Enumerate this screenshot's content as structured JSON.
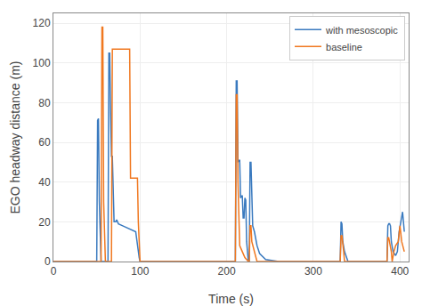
{
  "chart_data": {
    "type": "line",
    "title": "",
    "xlabel": "Time (s)",
    "ylabel": "EGO headway distance (m)",
    "xlim": [
      0,
      410
    ],
    "ylim": [
      0,
      125
    ],
    "xticks": [
      0,
      100,
      200,
      300,
      400
    ],
    "yticks": [
      0,
      20,
      40,
      60,
      80,
      100,
      120
    ],
    "grid": true,
    "legend": "upper right",
    "series": [
      {
        "name": "with mesoscopic",
        "color": "#3a7abf",
        "x": [
          0,
          49,
          50,
          51,
          52,
          53,
          55,
          56,
          62,
          63,
          64,
          65,
          66,
          67,
          68,
          69,
          70,
          71,
          72,
          73,
          74,
          75,
          80,
          85,
          90,
          95,
          99,
          100,
          101,
          199,
          210,
          211,
          212,
          213,
          214,
          215,
          216,
          217,
          218,
          219,
          220,
          221,
          222,
          223,
          224,
          225,
          226,
          227,
          228,
          229,
          230,
          232,
          235,
          238,
          245,
          260,
          265,
          266,
          329,
          330,
          331,
          332,
          333,
          334,
          336,
          340,
          341,
          384,
          385,
          386,
          387,
          388,
          389,
          390,
          392,
          395,
          397,
          399,
          401,
          403,
          405
        ],
        "values": [
          0,
          0,
          0,
          71,
          72,
          30,
          0,
          0,
          0,
          0,
          105,
          105,
          75,
          53,
          53,
          30,
          20,
          20,
          20,
          21,
          20,
          19,
          18,
          17,
          16,
          15,
          2,
          0,
          0,
          0,
          0,
          91,
          91,
          50,
          51,
          51,
          32,
          33,
          33,
          22,
          22,
          32,
          31,
          10,
          3,
          0,
          0,
          50,
          50,
          25,
          18,
          15,
          8,
          4,
          1,
          0,
          0,
          0,
          0,
          0,
          0,
          20,
          19,
          10,
          5,
          0,
          0,
          0,
          0,
          18,
          19,
          19,
          18,
          10,
          5,
          3,
          5,
          15,
          20,
          25,
          15
        ]
      },
      {
        "name": "baseline",
        "color": "#f07820",
        "x": [
          0,
          54,
          55,
          56,
          57,
          58,
          60,
          61,
          66,
          67,
          68,
          87,
          88,
          89,
          90,
          91,
          92,
          95,
          96,
          97,
          98,
          99,
          100,
          101,
          199,
          210,
          211,
          212,
          213,
          215,
          218,
          221,
          225,
          226,
          227,
          228,
          229,
          232,
          235,
          255,
          256,
          329,
          330,
          331,
          332,
          333,
          335,
          336,
          340,
          341,
          384,
          385,
          386,
          387,
          390,
          391,
          393,
          395,
          398,
          400,
          402,
          405
        ],
        "values": [
          0,
          0,
          0,
          118,
          118,
          30,
          0,
          0,
          0,
          0,
          107,
          107,
          107,
          42,
          42,
          42,
          42,
          42,
          42,
          42,
          20,
          5,
          0,
          0,
          0,
          0,
          84,
          84,
          40,
          8,
          5,
          2,
          0,
          0,
          18,
          18,
          10,
          5,
          0,
          0,
          0,
          0,
          0,
          0,
          13,
          13,
          5,
          0,
          0,
          0,
          0,
          0,
          12,
          12,
          5,
          0,
          5,
          8,
          10,
          18,
          10,
          5
        ]
      }
    ]
  }
}
